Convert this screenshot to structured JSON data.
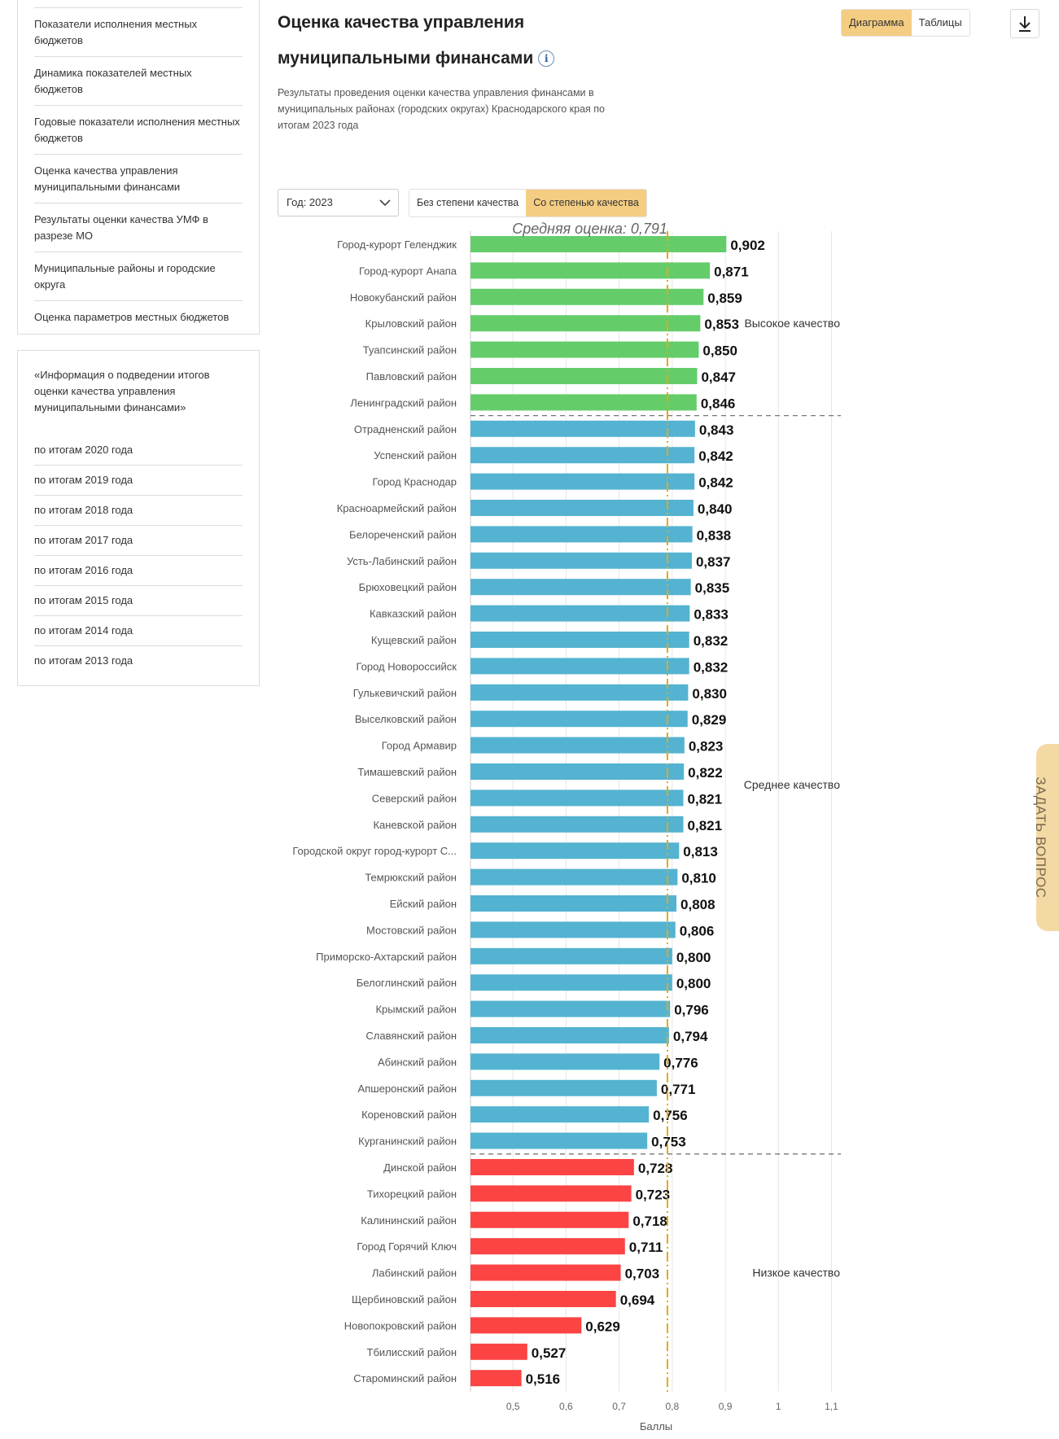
{
  "sidebar": {
    "menu": [
      "Показатели исполнения местных бюджетов",
      "Динамика показателей местных бюджетов",
      "Годовые показатели исполнения местных бюджетов",
      "Оценка качества управления муниципальными финансами",
      "Результаты оценки качества УМФ в разрезе МО",
      "Муниципальные районы и городские округа",
      "Оценка параметров местных бюджетов"
    ],
    "reports_heading": "«Информация о подведении итогов оценки качества управления муниципальными финансами»",
    "reports": [
      "по итогам 2020 года",
      "по итогам 2019 года",
      "по итогам 2018 года",
      "по итогам 2017 года",
      "по итогам 2016 года",
      "по итогам 2015 года",
      "по итогам 2014 года",
      "по итогам 2013 года"
    ]
  },
  "header": {
    "title": "Оценка качества управления муниципальными финансами",
    "info_icon": "i",
    "subtitle": "Результаты проведения оценки качества управления финансами в муниципальных районах (городских округах) Краснодарского края по итогам 2023 года",
    "view_toggle": {
      "chart": "Диаграмма",
      "tables": "Таблицы"
    },
    "download_icon": "download-icon"
  },
  "controls": {
    "year_label": "Год: 2023",
    "quality_off": "Без степени качества",
    "quality_on": "Со степенью качества"
  },
  "ask_button": "ЗАДАТЬ ВОПРОС",
  "colors": {
    "high": "#64cd6a",
    "medium": "#54b3d1",
    "low": "#fb4443",
    "average": "#e6a817",
    "accent": "#f5cd82"
  },
  "chart_data": {
    "type": "bar",
    "orientation": "horizontal",
    "xlabel": "Баллы",
    "xlim": [
      0.42,
      1.11
    ],
    "ticks": [
      {
        "v": 0.5,
        "label": "0,5"
      },
      {
        "v": 0.6,
        "label": "0,6"
      },
      {
        "v": 0.7,
        "label": "0,7"
      },
      {
        "v": 0.8,
        "label": "0,8"
      },
      {
        "v": 0.9,
        "label": "0,9"
      },
      {
        "v": 1.0,
        "label": "1"
      },
      {
        "v": 1.1,
        "label": "1,1"
      }
    ],
    "average": {
      "value": 0.791,
      "label": "Средняя оценка: 0,791"
    },
    "zones": [
      {
        "name": "high",
        "label": "Высокое качество"
      },
      {
        "name": "medium",
        "label": "Среднее качество"
      },
      {
        "name": "low",
        "label": "Низкое качество"
      }
    ],
    "categories": [
      "Город-курорт Геленджик",
      "Город-курорт Анапа",
      "Новокубанский район",
      "Крыловский район",
      "Туапсинский район",
      "Павловский район",
      "Ленинградский район",
      "Отрадненский район",
      "Успенский район",
      "Город Краснодар",
      "Красноармейский район",
      "Белореченский район",
      "Усть-Лабинский район",
      "Брюховецкий район",
      "Кавказский район",
      "Кущевский район",
      "Город Новороссийск",
      "Гулькевичский район",
      "Выселковский район",
      "Город Армавир",
      "Тимашевский район",
      "Северский район",
      "Каневской район",
      "Городской округ город-курорт С...",
      "Темрюкский район",
      "Ейский район",
      "Мостовский район",
      "Приморско-Ахтарский район",
      "Белоглинский район",
      "Крымский район",
      "Славянский район",
      "Абинский район",
      "Апшеронский район",
      "Кореновский район",
      "Курганинский район",
      "Динской район",
      "Тихорецкий район",
      "Калининский район",
      "Город Горячий Ключ",
      "Лабинский район",
      "Щербиновский район",
      "Новопокровский район",
      "Тбилисский район",
      "Староминский район"
    ],
    "values": [
      0.902,
      0.871,
      0.859,
      0.853,
      0.85,
      0.847,
      0.846,
      0.843,
      0.842,
      0.842,
      0.84,
      0.838,
      0.837,
      0.835,
      0.833,
      0.832,
      0.832,
      0.83,
      0.829,
      0.823,
      0.822,
      0.821,
      0.821,
      0.813,
      0.81,
      0.808,
      0.806,
      0.8,
      0.8,
      0.796,
      0.794,
      0.776,
      0.771,
      0.756,
      0.753,
      0.728,
      0.723,
      0.718,
      0.711,
      0.703,
      0.694,
      0.629,
      0.527,
      0.516
    ],
    "value_labels": [
      "0,902",
      "0,871",
      "0,859",
      "0,853",
      "0,850",
      "0,847",
      "0,846",
      "0,843",
      "0,842",
      "0,842",
      "0,840",
      "0,838",
      "0,837",
      "0,835",
      "0,833",
      "0,832",
      "0,832",
      "0,830",
      "0,829",
      "0,823",
      "0,822",
      "0,821",
      "0,821",
      "0,813",
      "0,810",
      "0,808",
      "0,806",
      "0,800",
      "0,800",
      "0,796",
      "0,794",
      "0,776",
      "0,771",
      "0,756",
      "0,753",
      "0,728",
      "0,723",
      "0,718",
      "0,711",
      "0,703",
      "0,694",
      "0,629",
      "0,527",
      "0,516"
    ],
    "quality": [
      "high",
      "high",
      "high",
      "high",
      "high",
      "high",
      "high",
      "medium",
      "medium",
      "medium",
      "medium",
      "medium",
      "medium",
      "medium",
      "medium",
      "medium",
      "medium",
      "medium",
      "medium",
      "medium",
      "medium",
      "medium",
      "medium",
      "medium",
      "medium",
      "medium",
      "medium",
      "medium",
      "medium",
      "medium",
      "medium",
      "medium",
      "medium",
      "medium",
      "medium",
      "low",
      "low",
      "low",
      "low",
      "low",
      "low",
      "low",
      "low",
      "low"
    ]
  }
}
